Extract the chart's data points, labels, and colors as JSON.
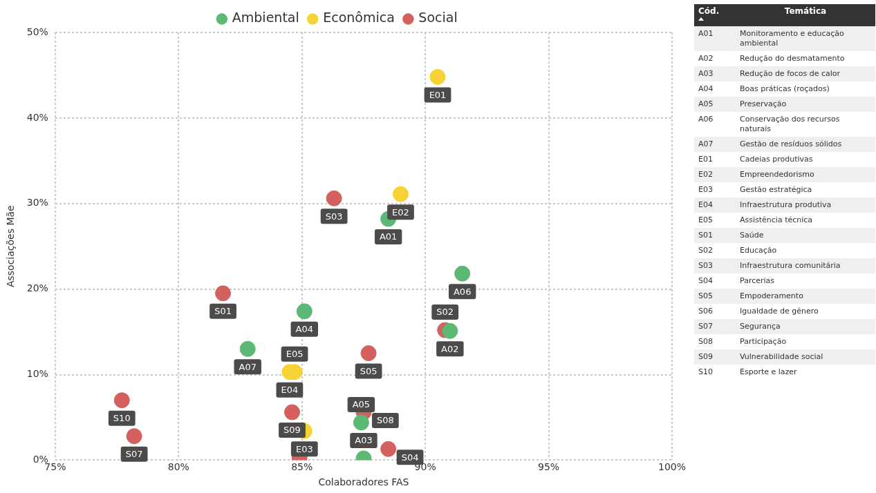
{
  "chart_data": [
    {
      "type": "scatter",
      "xlabel": "Colaboradores FAS",
      "ylabel": "Associações Mãe",
      "xlim": [
        75,
        100
      ],
      "xticks": [
        {
          "value": 75,
          "label": "75%"
        },
        {
          "value": 80,
          "label": "80%"
        },
        {
          "value": 85,
          "label": "85%"
        },
        {
          "value": 90,
          "label": "90%"
        },
        {
          "value": 95,
          "label": "95%"
        },
        {
          "value": 100,
          "label": "100%"
        }
      ],
      "ylim": [
        0,
        50
      ],
      "yticks": [
        {
          "value": 0,
          "label": "0%"
        },
        {
          "value": 10,
          "label": "10%"
        },
        {
          "value": 20,
          "label": "20%"
        },
        {
          "value": 30,
          "label": "30%"
        },
        {
          "value": 40,
          "label": "40%"
        },
        {
          "value": 50,
          "label": "50%"
        }
      ],
      "grid": true,
      "legend": "top",
      "marker": "circle",
      "series": [
        {
          "name": "Ambiental",
          "color": "#5bb974",
          "x": [
            88.5,
            91.0,
            87.5,
            85.1,
            87.4,
            91.5,
            82.8
          ],
          "values": [
            28.2,
            15.1,
            0.2,
            17.4,
            4.4,
            21.8,
            13.0
          ],
          "value_labels": [
            "A01",
            "A02",
            "A03",
            "A04",
            "A05",
            "A06",
            "A07"
          ]
        },
        {
          "name": "Econômica",
          "color": "#f7d234",
          "x": [
            90.5,
            89.0,
            85.1,
            84.5,
            84.7
          ],
          "values": [
            44.8,
            31.1,
            3.4,
            10.3,
            10.3
          ],
          "value_labels": [
            "E01",
            "E02",
            "E03",
            "E04",
            "E05"
          ]
        },
        {
          "name": "Social",
          "color": "#d46060",
          "x": [
            81.8,
            90.8,
            86.3,
            88.5,
            87.7,
            84.9,
            78.2,
            87.5,
            84.6,
            77.7
          ],
          "values": [
            19.5,
            15.2,
            30.6,
            1.3,
            12.5,
            0.3,
            2.8,
            5.6,
            5.6,
            7.0
          ],
          "value_labels": [
            "S01",
            "S02",
            "S03",
            "S04",
            "S05",
            null,
            "S07",
            "S08",
            "S09",
            "S10"
          ]
        }
      ]
    },
    {
      "type": "other",
      "annotations": [
        "Cód.",
        "Temática",
        "A01",
        "Monitoramento e educação ambiental",
        "A02",
        "Redução do desmatamento",
        "A03",
        "Redução de focos de calor",
        "A04",
        "Boas práticas (roçados)",
        "A05",
        "Preservação",
        "A06",
        "Conservação dos recursos naturais",
        "A07",
        "Gestão de resíduos sólidos",
        "E01",
        "Cadeias produtivas",
        "E02",
        "Empreendedorismo",
        "E03",
        "Gestão estratégica",
        "E04",
        "Infraestrutura produtiva",
        "E05",
        "Assistência técnica",
        "S01",
        "Saúde",
        "S02",
        "Educação",
        "S03",
        "Infraestrutura comunitária",
        "S04",
        "Parcerias",
        "S05",
        "Empoderamento",
        "S06",
        "Igualdade de gênero",
        "S07",
        "Segurança",
        "S08",
        "Participação",
        "S09",
        "Vulnerabilidade social",
        "S10",
        "Esporte e lazer"
      ]
    }
  ]
}
